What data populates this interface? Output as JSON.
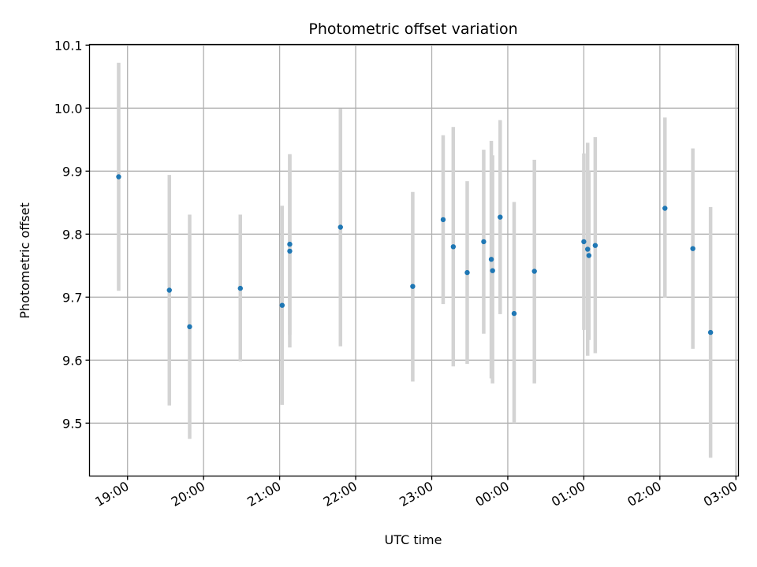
{
  "chart_data": {
    "type": "scatter",
    "title": "Photometric offset variation",
    "xlabel": "UTC time",
    "ylabel": "Photometric offset",
    "x_tick_labels": [
      "19:00",
      "20:00",
      "21:00",
      "22:00",
      "23:00",
      "00:00",
      "01:00",
      "02:00",
      "03:00"
    ],
    "y_tick_labels": [
      "9.5",
      "9.6",
      "9.7",
      "9.8",
      "9.9",
      "10.0",
      "10.1"
    ],
    "xlim": [
      "18:30",
      "03:02"
    ],
    "ylim": [
      9.416,
      10.101
    ],
    "grid": true,
    "colors": {
      "points": "#1f77b4",
      "error_bars": "#d3d3d3",
      "grid": "#b0b0b0"
    },
    "points": [
      {
        "x": "18:53",
        "y": 9.891,
        "yerr_low": 9.71,
        "yerr_high": 10.072
      },
      {
        "x": "19:33",
        "y": 9.711,
        "yerr_low": 9.528,
        "yerr_high": 9.894
      },
      {
        "x": "19:49",
        "y": 9.653,
        "yerr_low": 9.475,
        "yerr_high": 9.831
      },
      {
        "x": "20:29",
        "y": 9.714,
        "yerr_low": 9.598,
        "yerr_high": 9.831
      },
      {
        "x": "21:02",
        "y": 9.687,
        "yerr_low": 9.529,
        "yerr_high": 9.845
      },
      {
        "x": "21:08",
        "y": 9.784,
        "yerr_low": 9.64,
        "yerr_high": 9.927
      },
      {
        "x": "21:08",
        "y": 9.773,
        "yerr_low": 9.62,
        "yerr_high": 9.926
      },
      {
        "x": "21:48",
        "y": 9.811,
        "yerr_low": 9.622,
        "yerr_high": 9.999
      },
      {
        "x": "22:45",
        "y": 9.717,
        "yerr_low": 9.566,
        "yerr_high": 9.867
      },
      {
        "x": "23:09",
        "y": 9.823,
        "yerr_low": 9.689,
        "yerr_high": 9.957
      },
      {
        "x": "23:17",
        "y": 9.78,
        "yerr_low": 9.59,
        "yerr_high": 9.97
      },
      {
        "x": "23:28",
        "y": 9.739,
        "yerr_low": 9.594,
        "yerr_high": 9.884
      },
      {
        "x": "23:41",
        "y": 9.788,
        "yerr_low": 9.642,
        "yerr_high": 9.934
      },
      {
        "x": "23:47",
        "y": 9.76,
        "yerr_low": 9.571,
        "yerr_high": 9.948
      },
      {
        "x": "23:48",
        "y": 9.742,
        "yerr_low": 9.563,
        "yerr_high": 9.925
      },
      {
        "x": "23:54",
        "y": 9.827,
        "yerr_low": 9.673,
        "yerr_high": 9.981
      },
      {
        "x": "00:05",
        "y": 9.674,
        "yerr_low": 9.5,
        "yerr_high": 9.851
      },
      {
        "x": "00:21",
        "y": 9.741,
        "yerr_low": 9.563,
        "yerr_high": 9.918
      },
      {
        "x": "01:00",
        "y": 9.788,
        "yerr_low": 9.648,
        "yerr_high": 9.928
      },
      {
        "x": "01:03",
        "y": 9.776,
        "yerr_low": 9.607,
        "yerr_high": 9.945
      },
      {
        "x": "01:04",
        "y": 9.766,
        "yerr_low": 9.632,
        "yerr_high": 9.9
      },
      {
        "x": "01:09",
        "y": 9.782,
        "yerr_low": 9.611,
        "yerr_high": 9.954
      },
      {
        "x": "02:04",
        "y": 9.841,
        "yerr_low": 9.699,
        "yerr_high": 9.985
      },
      {
        "x": "02:26",
        "y": 9.777,
        "yerr_low": 9.618,
        "yerr_high": 9.936
      },
      {
        "x": "02:40",
        "y": 9.644,
        "yerr_low": 9.445,
        "yerr_high": 9.843
      }
    ]
  }
}
